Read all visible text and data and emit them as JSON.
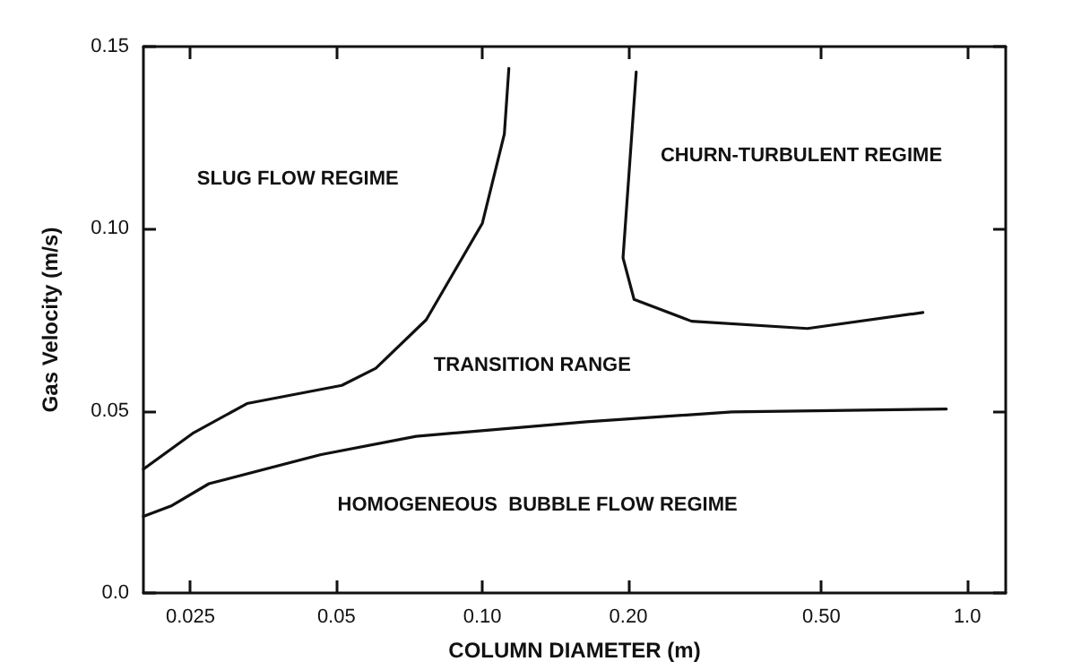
{
  "chart_data": {
    "type": "line",
    "xlabel": "COLUMN DIAMETER (m)",
    "ylabel": "Gas Velocity (m/s)",
    "series": [
      {
        "color": "#111111",
        "x": [
          0.02,
          0.0229,
          0.0273,
          0.0465,
          0.073,
          0.164,
          0.327,
          0.905
        ],
        "values": [
          0.021,
          0.024,
          0.03,
          0.038,
          0.043,
          0.047,
          0.0497,
          0.0505
        ]
      },
      {
        "color": "#111111",
        "x": [
          0.02,
          0.0254,
          0.0327,
          0.0513,
          0.0603,
          0.0766,
          0.1,
          0.111,
          0.1134
        ],
        "values": [
          0.034,
          0.044,
          0.052,
          0.057,
          0.0617,
          0.075,
          0.1015,
          0.126,
          0.144
        ]
      },
      {
        "color": "#111111",
        "x": [
          0.2076,
          0.195,
          0.2055,
          0.27,
          0.468,
          0.81
        ],
        "values": [
          0.143,
          0.092,
          0.0806,
          0.0746,
          0.0726,
          0.077
        ]
      }
    ],
    "log": "x",
    "xlim": [
      0.02,
      1.2
    ],
    "xticks": [
      0.025,
      0.05,
      {
        "value": 0.1,
        "label": "0.10"
      },
      {
        "value": 0.2,
        "label": "0.20"
      },
      {
        "value": 0.5,
        "label": "0.50"
      },
      {
        "value": 1,
        "label": "1.0"
      }
    ],
    "ylim": [
      0,
      0.15
    ],
    "yticks": [
      {
        "value": 0,
        "label": "0.0"
      },
      0.05,
      {
        "value": 0.1,
        "label": "0.10"
      },
      0.15
    ],
    "marker": "none",
    "line_style": "solid",
    "annotations": [
      "SLUG FLOW REGIME",
      "CHURN-TURBULENT REGIME",
      "TRANSITION RANGE",
      "HOMOGENEOUS  BUBBLE FLOW REGIME"
    ]
  }
}
